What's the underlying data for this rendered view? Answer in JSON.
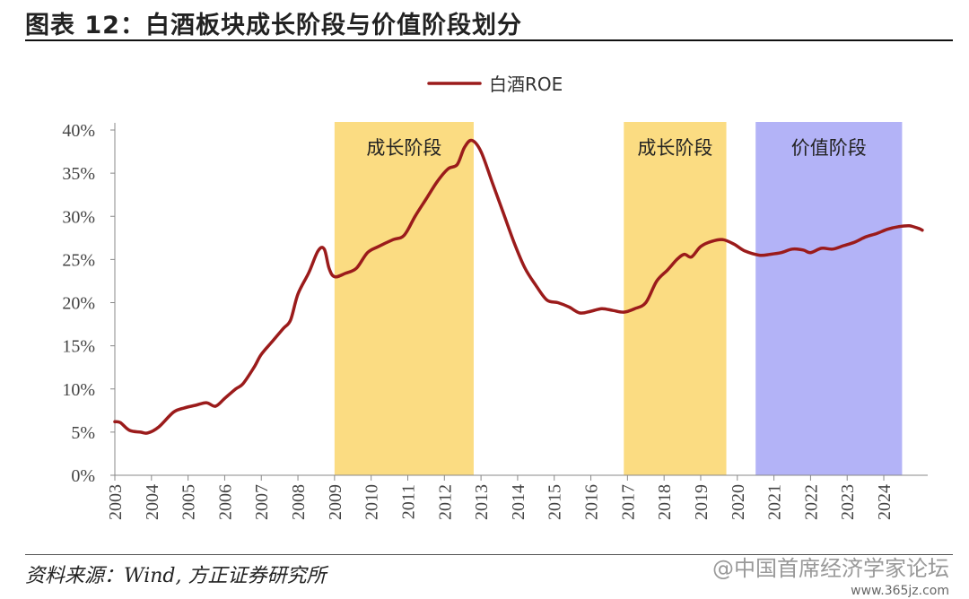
{
  "header": {
    "title": "图表 12：白酒板块成长阶段与价值阶段划分"
  },
  "footer": {
    "source": "资料来源：Wind, 方正证券研究所"
  },
  "watermark": {
    "line1": "@中国首席经济学家论坛",
    "line2": "www.365jz.com"
  },
  "colors": {
    "line": "#9b1b1b",
    "growth_band": "#fbdc82",
    "value_band": "#b3b3f7",
    "axis": "#888888"
  },
  "chart_data": {
    "type": "line",
    "title": "",
    "xlabel": "",
    "ylabel": "",
    "legend_position": "top-center",
    "grid": false,
    "xlim": [
      2003.0,
      2025.2
    ],
    "ylim": [
      0,
      40
    ],
    "y_unit": "%",
    "y_ticks": [
      {
        "value": 0,
        "label": "0%"
      },
      {
        "value": 5,
        "label": "5%"
      },
      {
        "value": 10,
        "label": "10%"
      },
      {
        "value": 15,
        "label": "15%"
      },
      {
        "value": 20,
        "label": "20%"
      },
      {
        "value": 25,
        "label": "25%"
      },
      {
        "value": 30,
        "label": "30%"
      },
      {
        "value": 35,
        "label": "35%"
      },
      {
        "value": 40,
        "label": "40%"
      }
    ],
    "x_ticks": [
      {
        "value": 2003,
        "label": "2003"
      },
      {
        "value": 2004,
        "label": "2004"
      },
      {
        "value": 2005,
        "label": "2005"
      },
      {
        "value": 2006,
        "label": "2006"
      },
      {
        "value": 2007,
        "label": "2007"
      },
      {
        "value": 2008,
        "label": "2008"
      },
      {
        "value": 2009,
        "label": "2009"
      },
      {
        "value": 2010,
        "label": "2010"
      },
      {
        "value": 2011,
        "label": "2011"
      },
      {
        "value": 2012,
        "label": "2012"
      },
      {
        "value": 2013,
        "label": "2013"
      },
      {
        "value": 2014,
        "label": "2014"
      },
      {
        "value": 2015,
        "label": "2015"
      },
      {
        "value": 2016,
        "label": "2016"
      },
      {
        "value": 2017,
        "label": "2017"
      },
      {
        "value": 2018,
        "label": "2018"
      },
      {
        "value": 2019,
        "label": "2019"
      },
      {
        "value": 2020,
        "label": "2020"
      },
      {
        "value": 2021,
        "label": "2021"
      },
      {
        "value": 2022,
        "label": "2022"
      },
      {
        "value": 2023,
        "label": "2023"
      },
      {
        "value": 2024,
        "label": "2024"
      }
    ],
    "bands": [
      {
        "label": "成长阶段",
        "x_start": 2009.0,
        "x_end": 2012.8,
        "kind": "growth"
      },
      {
        "label": "成长阶段",
        "x_start": 2016.9,
        "x_end": 2019.7,
        "kind": "growth"
      },
      {
        "label": "价值阶段",
        "x_start": 2020.5,
        "x_end": 2024.5,
        "kind": "value"
      }
    ],
    "series": [
      {
        "name": "白酒ROE",
        "points": [
          [
            2003.0,
            6.2
          ],
          [
            2003.15,
            6.1
          ],
          [
            2003.4,
            5.2
          ],
          [
            2003.7,
            5.0
          ],
          [
            2003.9,
            4.9
          ],
          [
            2004.2,
            5.6
          ],
          [
            2004.6,
            7.3
          ],
          [
            2004.9,
            7.8
          ],
          [
            2005.2,
            8.1
          ],
          [
            2005.5,
            8.4
          ],
          [
            2005.75,
            8.0
          ],
          [
            2006.0,
            8.9
          ],
          [
            2006.3,
            10.0
          ],
          [
            2006.5,
            10.6
          ],
          [
            2006.8,
            12.5
          ],
          [
            2007.0,
            14.0
          ],
          [
            2007.3,
            15.5
          ],
          [
            2007.6,
            17.0
          ],
          [
            2007.8,
            18.0
          ],
          [
            2008.0,
            21.0
          ],
          [
            2008.3,
            23.5
          ],
          [
            2008.55,
            26.0
          ],
          [
            2008.72,
            26.2
          ],
          [
            2008.85,
            24.0
          ],
          [
            2009.0,
            23.0
          ],
          [
            2009.3,
            23.4
          ],
          [
            2009.6,
            24.0
          ],
          [
            2009.9,
            25.8
          ],
          [
            2010.2,
            26.5
          ],
          [
            2010.6,
            27.3
          ],
          [
            2010.9,
            27.8
          ],
          [
            2011.2,
            30.0
          ],
          [
            2011.5,
            32.0
          ],
          [
            2011.8,
            34.0
          ],
          [
            2012.1,
            35.5
          ],
          [
            2012.35,
            36.0
          ],
          [
            2012.55,
            38.0
          ],
          [
            2012.75,
            38.8
          ],
          [
            2013.0,
            37.5
          ],
          [
            2013.3,
            34.0
          ],
          [
            2013.6,
            30.5
          ],
          [
            2013.9,
            27.0
          ],
          [
            2014.2,
            24.0
          ],
          [
            2014.5,
            22.0
          ],
          [
            2014.8,
            20.3
          ],
          [
            2015.1,
            20.0
          ],
          [
            2015.4,
            19.5
          ],
          [
            2015.7,
            18.8
          ],
          [
            2016.0,
            19.0
          ],
          [
            2016.3,
            19.3
          ],
          [
            2016.6,
            19.1
          ],
          [
            2016.9,
            18.9
          ],
          [
            2017.2,
            19.3
          ],
          [
            2017.5,
            20.0
          ],
          [
            2017.8,
            22.5
          ],
          [
            2018.1,
            23.8
          ],
          [
            2018.35,
            25.0
          ],
          [
            2018.55,
            25.6
          ],
          [
            2018.75,
            25.3
          ],
          [
            2019.0,
            26.5
          ],
          [
            2019.3,
            27.1
          ],
          [
            2019.6,
            27.3
          ],
          [
            2019.9,
            26.8
          ],
          [
            2020.2,
            26.0
          ],
          [
            2020.6,
            25.5
          ],
          [
            2020.9,
            25.6
          ],
          [
            2021.2,
            25.8
          ],
          [
            2021.5,
            26.2
          ],
          [
            2021.8,
            26.1
          ],
          [
            2022.0,
            25.8
          ],
          [
            2022.3,
            26.3
          ],
          [
            2022.6,
            26.2
          ],
          [
            2022.9,
            26.6
          ],
          [
            2023.2,
            27.0
          ],
          [
            2023.5,
            27.6
          ],
          [
            2023.8,
            28.0
          ],
          [
            2024.1,
            28.5
          ],
          [
            2024.4,
            28.8
          ],
          [
            2024.7,
            28.9
          ],
          [
            2024.95,
            28.6
          ],
          [
            2025.05,
            28.4
          ]
        ]
      }
    ]
  }
}
